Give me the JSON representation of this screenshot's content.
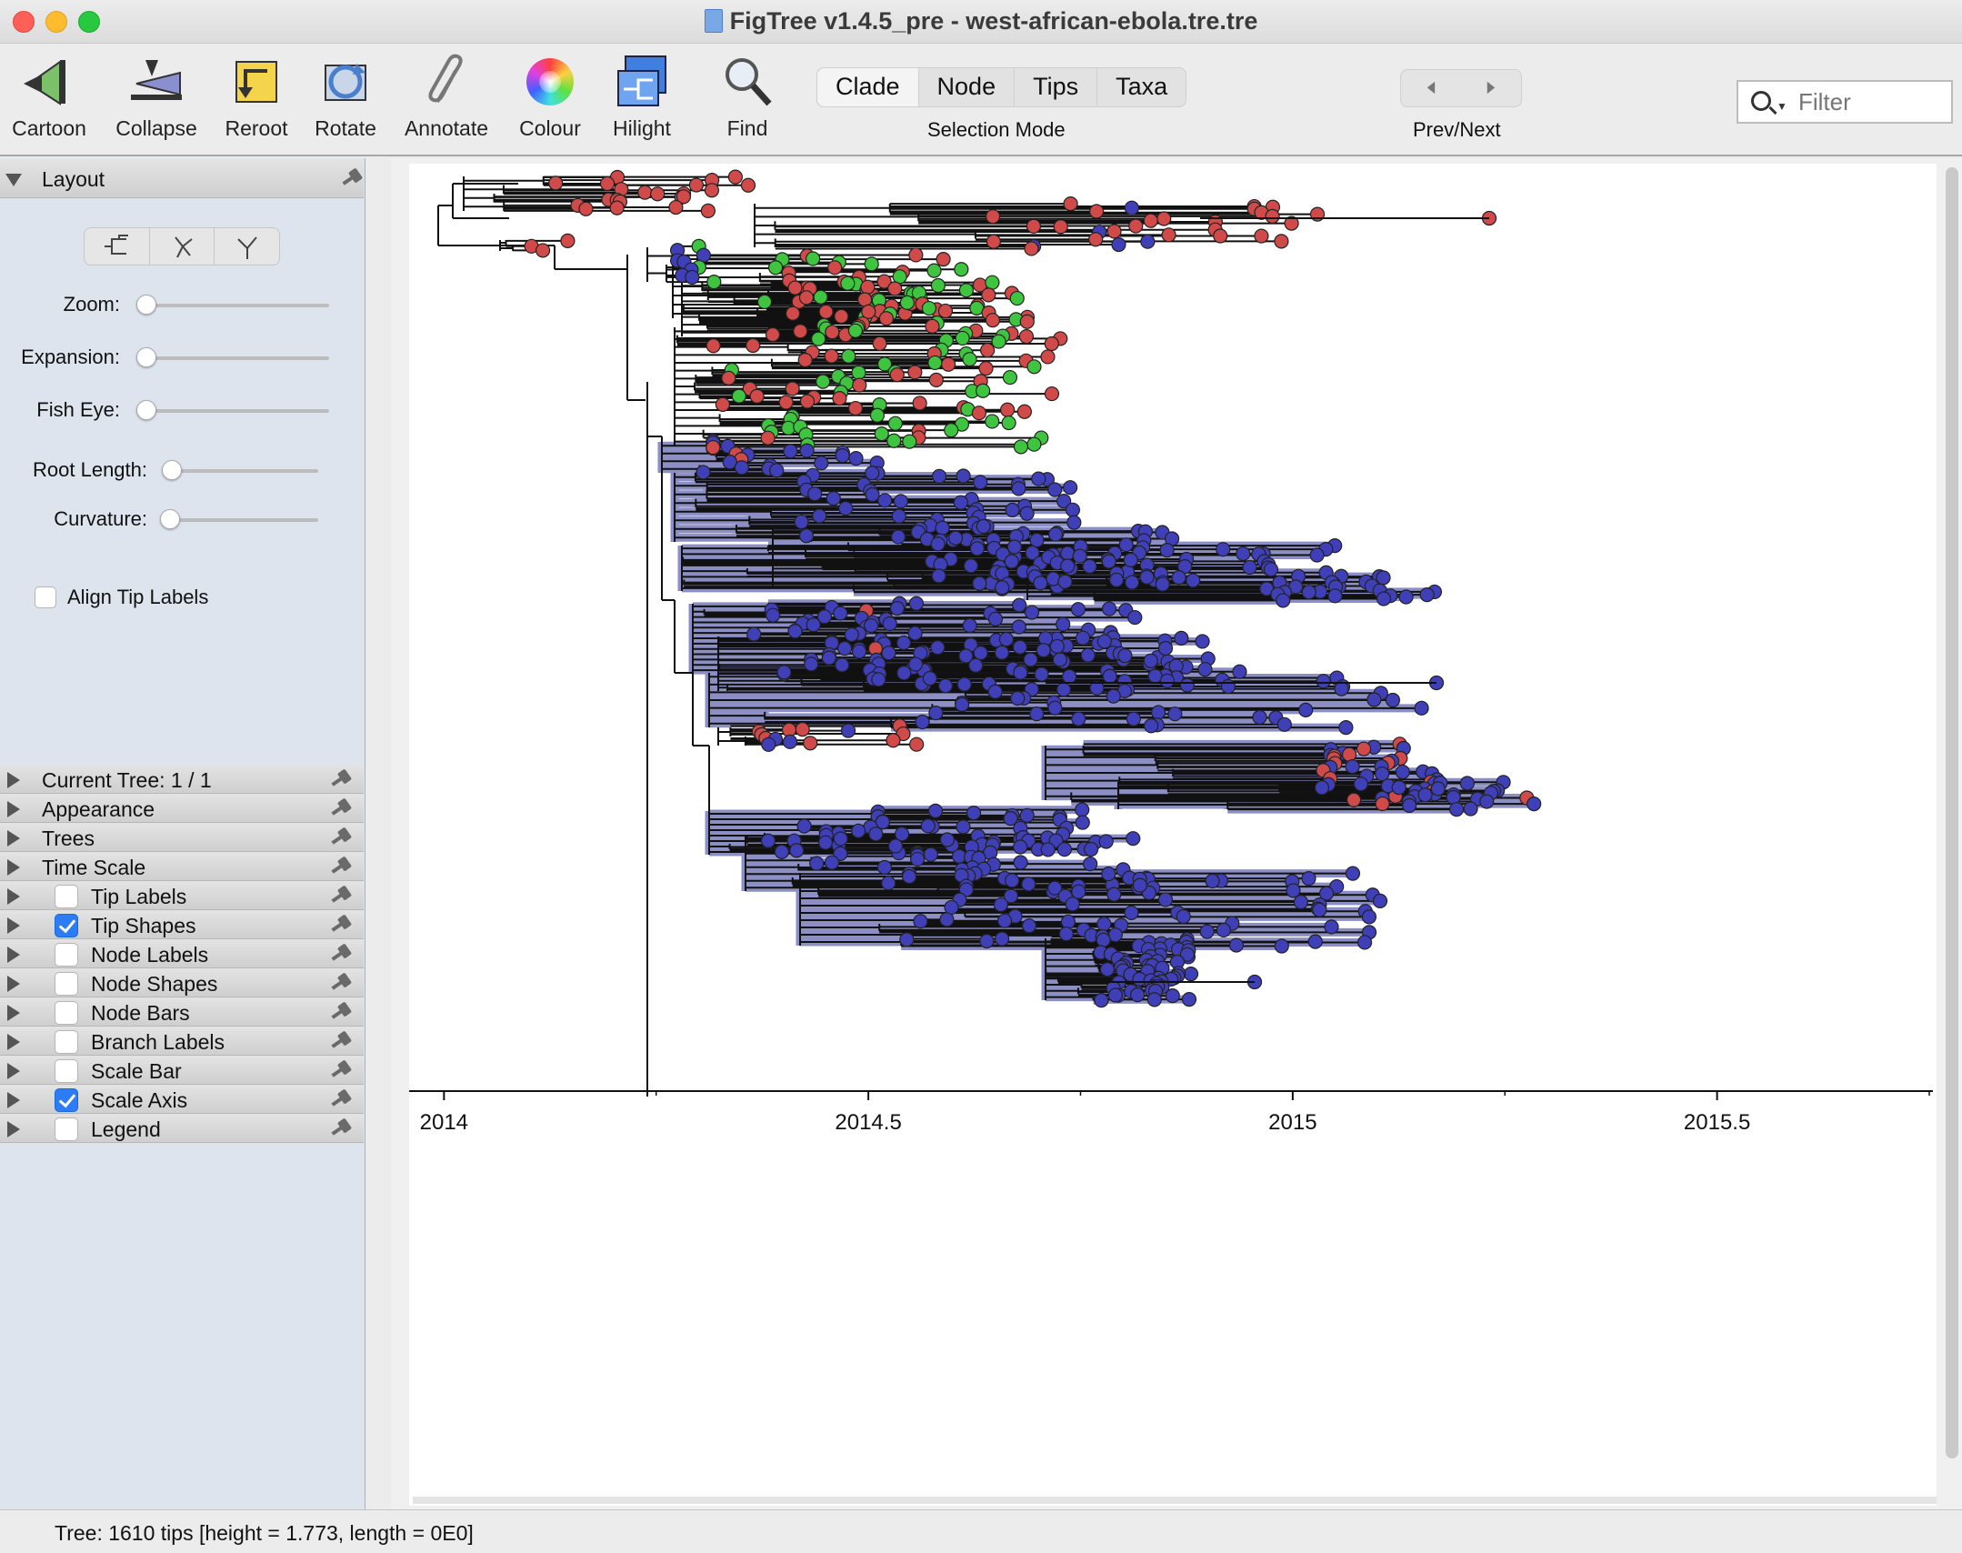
{
  "window": {
    "title": "FigTree v1.4.5_pre - west-african-ebola.tre.tre"
  },
  "toolbar": {
    "tools": [
      {
        "label": "Cartoon",
        "icon": "cartoon-icon"
      },
      {
        "label": "Collapse",
        "icon": "collapse-icon"
      },
      {
        "label": "Reroot",
        "icon": "reroot-icon"
      },
      {
        "label": "Rotate",
        "icon": "rotate-icon"
      },
      {
        "label": "Annotate",
        "icon": "paperclip-icon"
      },
      {
        "label": "Colour",
        "icon": "colour-wheel-icon"
      },
      {
        "label": "Hilight",
        "icon": "hilight-icon"
      },
      {
        "label": "Find",
        "icon": "magnifier-icon"
      }
    ],
    "selection_mode": {
      "options": [
        "Clade",
        "Node",
        "Tips",
        "Taxa"
      ],
      "selected": "Clade",
      "caption": "Selection Mode"
    },
    "prev_next": {
      "caption": "Prev/Next",
      "prev_icon": "arrow-left-icon",
      "next_icon": "arrow-right-icon"
    },
    "filter": {
      "placeholder": "Filter"
    }
  },
  "sidebar": {
    "layout_panel": {
      "title": "Layout",
      "zoom_label": "Zoom:",
      "expansion_label": "Expansion:",
      "fisheye_label": "Fish Eye:",
      "root_length_label": "Root Length:",
      "curvature_label": "Curvature:",
      "align_tip_labels": "Align Tip Labels",
      "zoom": 0,
      "expansion": 0,
      "fisheye": 0,
      "root_length": 0,
      "curvature": 0
    },
    "panels": [
      {
        "label": "Current Tree: 1 / 1",
        "checkbox": null
      },
      {
        "label": "Appearance",
        "checkbox": null
      },
      {
        "label": "Trees",
        "checkbox": null
      },
      {
        "label": "Time Scale",
        "checkbox": null
      },
      {
        "label": "Tip Labels",
        "checkbox": false
      },
      {
        "label": "Tip Shapes",
        "checkbox": true
      },
      {
        "label": "Node Labels",
        "checkbox": false
      },
      {
        "label": "Node Shapes",
        "checkbox": false
      },
      {
        "label": "Node Bars",
        "checkbox": false
      },
      {
        "label": "Branch Labels",
        "checkbox": false
      },
      {
        "label": "Scale Bar",
        "checkbox": false
      },
      {
        "label": "Scale Axis",
        "checkbox": true
      },
      {
        "label": "Legend",
        "checkbox": false
      }
    ]
  },
  "tree": {
    "axis_ticks": [
      "2014",
      "2014.5",
      "2015",
      "2015.5"
    ],
    "axis_range": [
      2013.96,
      2015.75
    ],
    "colors": {
      "red": "#d04a4a",
      "green": "#3fc43f",
      "blue": "#3f3fb8",
      "highlight": "#8c8fc4",
      "branch": "#111111"
    }
  },
  "status": {
    "text": "Tree: 1610 tips [height = 1.773, length = 0E0]"
  }
}
